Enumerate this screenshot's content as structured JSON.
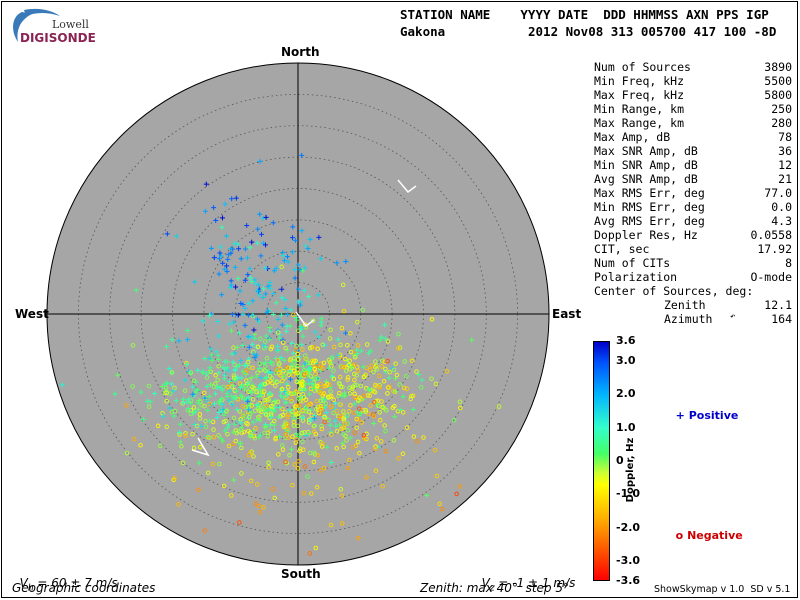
{
  "logo": {
    "line1": "Lowell",
    "line2": "DIGISONDE"
  },
  "header": {
    "labels": "STATION NAME    YYYY DATE  DDD HHMMSS AXN PPS IGP",
    "station": "Gakona",
    "values": "2012 Nov08 313 005700 417 100 -8D"
  },
  "compass": {
    "north": "North",
    "south": "South",
    "east": "East",
    "west": "West"
  },
  "stats": [
    {
      "k": "Num of Sources",
      "v": "3890"
    },
    {
      "k": "Min Freq, kHz",
      "v": "5500"
    },
    {
      "k": "Max Freq, kHz",
      "v": "5800"
    },
    {
      "k": "Min Range, km",
      "v": "250"
    },
    {
      "k": "Max Range, km",
      "v": "280"
    },
    {
      "k": "Max Amp, dB",
      "v": "78"
    },
    {
      "k": "Max SNR Amp, dB",
      "v": "36"
    },
    {
      "k": "Min SNR Amp, dB",
      "v": "12"
    },
    {
      "k": "Avg SNR Amp, dB",
      "v": "21"
    },
    {
      "k": "Max RMS Err, deg",
      "v": "77.0"
    },
    {
      "k": "Min RMS Err, deg",
      "v": "0.0"
    },
    {
      "k": "Avg RMS Err, deg",
      "v": "4.3"
    },
    {
      "k": "Doppler Res, Hz",
      "v": "0.0558"
    },
    {
      "k": "CIT, sec",
      "v": "17.92"
    },
    {
      "k": "Num of CITs",
      "v": "8"
    },
    {
      "k": "Polarization",
      "v": "O-mode"
    }
  ],
  "center": {
    "title": "Center of Sources, deg:",
    "zenith_k": "Zenith",
    "zenith_v": "12.1",
    "azimuth_k": "Azimuth",
    "azimuth_v": "164"
  },
  "colorbar": {
    "title": "Doppler, Hz",
    "ticks": [
      "3.6",
      "3.0",
      "2.0",
      "1.0",
      "0",
      "-1.0",
      "-2.0",
      "-3.0",
      "-3.6"
    ],
    "tick_values": [
      3.6,
      3.0,
      2.0,
      1.0,
      0,
      -1.0,
      -2.0,
      -3.0,
      -3.6
    ],
    "min": -3.6,
    "max": 3.6
  },
  "legend": {
    "positive_sym": "+",
    "positive": "Positive",
    "negative_sym": "o",
    "negative": "Negative",
    "positive_color": "#0000cc",
    "negative_color": "#cc0000"
  },
  "footer": {
    "vh_pre": "V",
    "vh_sub": "h",
    "vh_post": " = 60 ± 7 m/s",
    "vz_pre": "V",
    "vz_sub": "z",
    "vz_post": " = -1 ± 1 m/s",
    "coords": "Geographic coordinates",
    "zenith": "Zenith: max 40°  step 5°",
    "version": "ShowSkymap v 1.0  SD v 5.1"
  },
  "plot": {
    "bg_color": "#a6a6a6",
    "max_zenith_deg": 40,
    "step_deg": 5
  }
}
